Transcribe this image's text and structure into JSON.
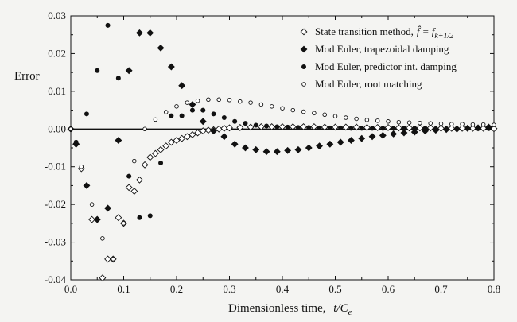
{
  "chart_data": {
    "type": "scatter",
    "title": "",
    "xlabel": "Dimensionless time,",
    "xlabel_math": "t/C",
    "xlabel_sub": "e",
    "ylabel": "Error",
    "xlim": [
      0,
      0.8
    ],
    "ylim": [
      -0.04,
      0.03
    ],
    "xticks": [
      0.0,
      0.1,
      0.2,
      0.3,
      0.4,
      0.5,
      0.6,
      0.7,
      0.8
    ],
    "xtick_labels": [
      "0.0",
      "0.1",
      "0.2",
      "0.3",
      "0.4",
      "0.5",
      "0.6",
      "0.7",
      "0.8"
    ],
    "yticks": [
      -0.04,
      -0.03,
      -0.02,
      -0.01,
      0.0,
      0.01,
      0.02,
      0.03
    ],
    "ytick_labels": [
      "-0.04",
      "-0.03",
      "-0.02",
      "-0.01",
      "0.00",
      "0.01",
      "0.02",
      "0.03"
    ],
    "zero_line": true,
    "grid": false,
    "legend_position": "top-right",
    "series": [
      {
        "name": "State transition method,",
        "name_math": "f̂ = f",
        "name_sub": "k+1/2",
        "marker": "diamond-open",
        "x": [
          0.01,
          0.02,
          0.04,
          0.05,
          0.06,
          0.07,
          0.08,
          0.09,
          0.1,
          0.11,
          0.12,
          0.13,
          0.14,
          0.15,
          0.16,
          0.17,
          0.18,
          0.19,
          0.2,
          0.21,
          0.22,
          0.23,
          0.24,
          0.25,
          0.26,
          0.27,
          0.28,
          0.29,
          0.3,
          0.32,
          0.34,
          0.36,
          0.38,
          0.4,
          0.42,
          0.44,
          0.46,
          0.48,
          0.5,
          0.52,
          0.54,
          0.56,
          0.58,
          0.6,
          0.62,
          0.64,
          0.66,
          0.68,
          0.7,
          0.72,
          0.74,
          0.76,
          0.78,
          0.8
        ],
        "y": [
          -0.004,
          -0.0105,
          -0.024,
          -0.024,
          -0.0395,
          -0.0345,
          -0.0345,
          -0.0235,
          -0.025,
          -0.0155,
          -0.0165,
          -0.0135,
          -0.0095,
          -0.0075,
          -0.0065,
          -0.0055,
          -0.0045,
          -0.0035,
          -0.003,
          -0.0025,
          -0.002,
          -0.0015,
          -0.001,
          -0.0005,
          -0.0003,
          -0.0002,
          0.0,
          0.0002,
          0.0003,
          0.0004,
          0.0005,
          0.0006,
          0.0006,
          0.0006,
          0.0006,
          0.0006,
          0.0006,
          0.0005,
          0.0005,
          0.0005,
          0.0005,
          0.0004,
          0.0004,
          0.0004,
          0.0003,
          0.0003,
          0.0003,
          0.0003,
          0.0002,
          0.0002,
          0.0002,
          0.0002,
          0.0002,
          0.0001
        ]
      },
      {
        "name": "Mod Euler, trapezoidal damping",
        "marker": "diamond-filled",
        "x": [
          0.0,
          0.01,
          0.03,
          0.05,
          0.07,
          0.09,
          0.11,
          0.13,
          0.15,
          0.17,
          0.19,
          0.21,
          0.23,
          0.25,
          0.27,
          0.29,
          0.31,
          0.33,
          0.35,
          0.37,
          0.39,
          0.41,
          0.43,
          0.45,
          0.47,
          0.49,
          0.51,
          0.53,
          0.55,
          0.57,
          0.59,
          0.61,
          0.63,
          0.65,
          0.67,
          0.69,
          0.71,
          0.73,
          0.75,
          0.77,
          0.79
        ],
        "y": [
          0.0,
          -0.004,
          -0.015,
          -0.024,
          -0.021,
          -0.003,
          0.0155,
          0.0255,
          0.0255,
          0.0215,
          0.0165,
          0.0115,
          0.0065,
          0.002,
          -0.0005,
          -0.002,
          -0.004,
          -0.005,
          -0.0055,
          -0.006,
          -0.006,
          -0.0057,
          -0.0055,
          -0.005,
          -0.0045,
          -0.004,
          -0.0035,
          -0.003,
          -0.0025,
          -0.002,
          -0.0017,
          -0.0013,
          -0.001,
          -0.0008,
          -0.0005,
          -0.0003,
          -0.0001,
          0.0,
          0.0002,
          0.0003,
          0.0005
        ]
      },
      {
        "name": "Mod Euler, predictor int. damping",
        "marker": "circle-filled",
        "x": [
          0.0,
          0.01,
          0.03,
          0.05,
          0.07,
          0.09,
          0.11,
          0.13,
          0.15,
          0.17,
          0.19,
          0.21,
          0.23,
          0.25,
          0.27,
          0.29,
          0.31,
          0.33,
          0.35,
          0.37,
          0.39,
          0.41,
          0.43,
          0.45,
          0.47,
          0.49,
          0.51,
          0.53,
          0.55,
          0.57,
          0.59,
          0.61,
          0.63,
          0.65,
          0.67,
          0.69,
          0.71,
          0.73,
          0.75,
          0.77,
          0.79
        ],
        "y": [
          0.0,
          -0.0035,
          0.004,
          0.0155,
          0.0275,
          0.0135,
          -0.0125,
          -0.0235,
          -0.023,
          -0.009,
          0.0035,
          0.0035,
          0.005,
          0.005,
          0.004,
          0.003,
          0.002,
          0.0015,
          0.001,
          0.0008,
          0.0006,
          0.0005,
          0.0004,
          0.0004,
          0.0003,
          0.0003,
          0.0003,
          0.0002,
          0.0002,
          0.0002,
          0.0002,
          0.0002,
          0.0002,
          0.0002,
          0.0002,
          0.0001,
          0.0001,
          0.0001,
          0.0001,
          0.0001,
          0.0001
        ]
      },
      {
        "name": "Mod Euler, root matching",
        "marker": "circle-open",
        "x": [
          0.0,
          0.02,
          0.04,
          0.06,
          0.08,
          0.1,
          0.12,
          0.14,
          0.16,
          0.18,
          0.2,
          0.22,
          0.24,
          0.26,
          0.28,
          0.3,
          0.32,
          0.34,
          0.36,
          0.38,
          0.4,
          0.42,
          0.44,
          0.46,
          0.48,
          0.5,
          0.52,
          0.54,
          0.56,
          0.58,
          0.6,
          0.62,
          0.64,
          0.66,
          0.68,
          0.7,
          0.72,
          0.74,
          0.76,
          0.78,
          0.8
        ],
        "y": [
          0.0,
          -0.01,
          -0.02,
          -0.029,
          -0.0345,
          -0.025,
          -0.0085,
          0.0,
          0.0025,
          0.0045,
          0.006,
          0.007,
          0.0075,
          0.0078,
          0.0078,
          0.0077,
          0.0073,
          0.007,
          0.0065,
          0.006,
          0.0055,
          0.005,
          0.0046,
          0.0042,
          0.0038,
          0.0034,
          0.003,
          0.0027,
          0.0024,
          0.0022,
          0.002,
          0.0018,
          0.0017,
          0.0016,
          0.0015,
          0.0014,
          0.0013,
          0.0013,
          0.0012,
          0.0012,
          0.0011
        ]
      }
    ]
  }
}
